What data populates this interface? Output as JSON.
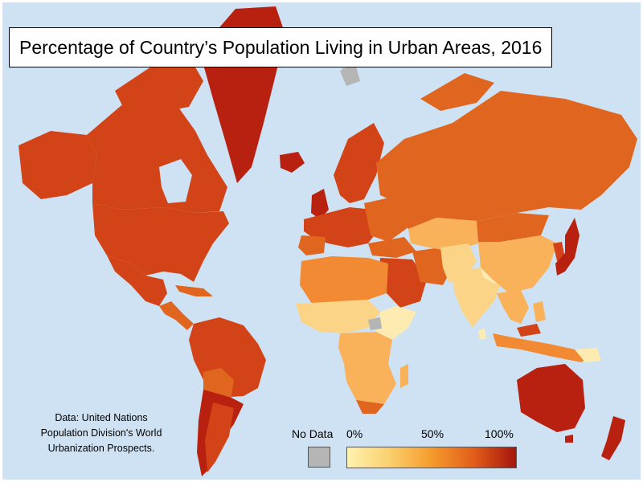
{
  "title": "Percentage of Country’s Population Living in Urban Areas, 2016",
  "source": [
    "Data: United Nations",
    "Population Division's World",
    "Urbanization Prospects."
  ],
  "legend": {
    "no_data_label": "No Data",
    "ticks": [
      "0%",
      "50%",
      "100%"
    ],
    "no_data_color": "#b5b5b5",
    "gradient_colors": [
      "#fff2b0",
      "#fbd06e",
      "#f69b2c",
      "#e25d1a",
      "#a5140c"
    ]
  },
  "colors": {
    "ocean": "#cfe2f3",
    "very_high": "#b8200f",
    "high": "#d24417",
    "mid_high": "#e0661f",
    "mid": "#f18a32",
    "mid_low": "#f9b259",
    "low": "#fcd488",
    "very_low": "#fdebb1"
  }
}
